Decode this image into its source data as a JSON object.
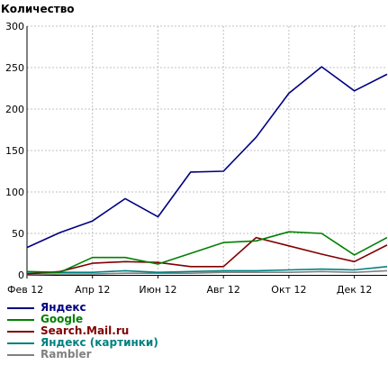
{
  "chart_data": {
    "type": "line",
    "title": "Количество",
    "xlabel": "",
    "ylabel": "",
    "x": [
      "Фев 12",
      "Мар 12",
      "Апр 12",
      "Май 12",
      "Июн 12",
      "Июл 12",
      "Авг 12",
      "Сен 12",
      "Окт 12",
      "Ноя 12",
      "Дек 12",
      "Янв 13"
    ],
    "x_tick_labels": [
      "Фев 12",
      "Апр 12",
      "Июн 12",
      "Авг 12",
      "Окт 12",
      "Дек 12"
    ],
    "y_ticks": [
      "0",
      "50",
      "100",
      "150",
      "200",
      "250",
      "300"
    ],
    "ylim": [
      0,
      300
    ],
    "grid": true,
    "legend_position": "bottom",
    "series": [
      {
        "name": "Яндекс",
        "color": "#000080",
        "values": [
          33,
          51,
          65,
          92,
          70,
          124,
          125,
          166,
          219,
          251,
          222,
          242
        ]
      },
      {
        "name": "Google",
        "color": "#008000",
        "values": [
          4,
          3,
          21,
          21,
          13,
          26,
          39,
          41,
          52,
          50,
          24,
          45
        ]
      },
      {
        "name": "Search.Mail.ru",
        "color": "#800000",
        "values": [
          1,
          4,
          14,
          16,
          15,
          10,
          10,
          45,
          35,
          25,
          16,
          36
        ]
      },
      {
        "name": "Яндекс (картинки)",
        "color": "#008080",
        "values": [
          2,
          3,
          3,
          5,
          3,
          4,
          5,
          5,
          6,
          7,
          6,
          10
        ]
      },
      {
        "name": "Rambler",
        "color": "#808080",
        "values": [
          0,
          1,
          1,
          2,
          2,
          2,
          3,
          3,
          3,
          4,
          3,
          5
        ]
      }
    ]
  }
}
